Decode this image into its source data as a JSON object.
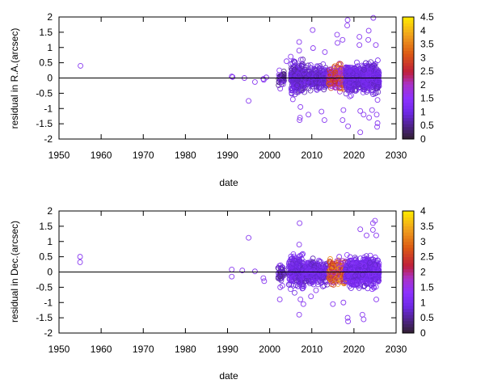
{
  "chart_data": [
    {
      "type": "scatter",
      "xlabel": "date",
      "ylabel": "residual in R.A.(arcsec)",
      "xlim": [
        1950,
        2030
      ],
      "ylim": [
        -2,
        2
      ],
      "xticks": [
        "1950",
        "1960",
        "1970",
        "1980",
        "1990",
        "2000",
        "2010",
        "2020",
        "2030"
      ],
      "yticks": [
        "-2",
        "-1.5",
        "-1",
        "-0.5",
        "0",
        "0.5",
        "1",
        "1.5",
        "2"
      ],
      "grid": false,
      "marker": "open circle",
      "reference_line_y": 0,
      "colorbar": {
        "range": [
          0,
          4.5
        ],
        "ticks": [
          "0",
          "0.5",
          "1",
          "1.5",
          "2",
          "2.5",
          "3",
          "3.5",
          "4",
          "4.5"
        ]
      },
      "point_color": "#8a3cf0",
      "points": [
        [
          1955.1,
          0.4
        ],
        [
          1991,
          0.05
        ],
        [
          1991.2,
          0.03
        ],
        [
          1994,
          0
        ],
        [
          1995,
          -0.75
        ],
        [
          1996.5,
          -0.13
        ],
        [
          1998.5,
          -0.03
        ],
        [
          1998.6,
          -0.06
        ],
        [
          1999.2,
          0.02
        ],
        [
          2002.3,
          0.25
        ],
        [
          2002.5,
          -0.35
        ],
        [
          2002.2,
          0.1
        ],
        [
          2002.6,
          -0.1
        ],
        [
          2003.2,
          -0.2
        ],
        [
          2004,
          0.55
        ],
        [
          2005,
          0.7
        ],
        [
          2005.5,
          -0.7
        ],
        [
          2007,
          1.18
        ],
        [
          2007,
          0.9
        ],
        [
          2007.2,
          -1.3
        ],
        [
          2007.1,
          -1.38
        ],
        [
          2007.3,
          -0.95
        ],
        [
          2007.4,
          0.6
        ],
        [
          2009.2,
          -1.2
        ],
        [
          2010.2,
          1.57
        ],
        [
          2010.3,
          0.98
        ],
        [
          2012.3,
          -1.1
        ],
        [
          2013,
          -1.38
        ],
        [
          2013.1,
          0.85
        ],
        [
          2016,
          1.42
        ],
        [
          2016.1,
          1.15
        ],
        [
          2017.3,
          1.25
        ],
        [
          2017.5,
          -1.05
        ],
        [
          2017.3,
          -1.38
        ],
        [
          2018.5,
          1.9
        ],
        [
          2018.4,
          1.72
        ],
        [
          2018.6,
          -1.58
        ],
        [
          2021.3,
          1.35
        ],
        [
          2021.3,
          1.08
        ],
        [
          2021.5,
          -1.08
        ],
        [
          2021.5,
          -1.78
        ],
        [
          2022.3,
          -1.2
        ],
        [
          2023.5,
          1.55
        ],
        [
          2023.4,
          1.25
        ],
        [
          2023.6,
          -1.3
        ],
        [
          2024.3,
          -1.05
        ],
        [
          2024.6,
          1.97
        ],
        [
          2025.2,
          1.08
        ],
        [
          2025.4,
          -1.2
        ],
        [
          2025.6,
          -1.48
        ],
        [
          2025.5,
          -1.6
        ],
        [
          2025.6,
          -0.72
        ]
      ],
      "dense_regions": [
        {
          "x": [
            2002,
            2003.5
          ],
          "spread": 0.15,
          "count": 40,
          "color_value": 0.6
        },
        {
          "x": [
            2005,
            2008
          ],
          "spread": 0.35,
          "count": 200,
          "color_value": 0.9
        },
        {
          "x": [
            2008,
            2014
          ],
          "spread": 0.25,
          "count": 300,
          "color_value": 0.9
        },
        {
          "x": [
            2014,
            2018
          ],
          "spread": 0.25,
          "count": 250,
          "color_value": 2.5
        },
        {
          "x": [
            2018,
            2026
          ],
          "spread": 0.3,
          "count": 600,
          "color_value": 1.0
        }
      ]
    },
    {
      "type": "scatter",
      "xlabel": "date",
      "ylabel": "residual in Dec.(arcsec)",
      "xlim": [
        1950,
        2030
      ],
      "ylim": [
        -2,
        2
      ],
      "xticks": [
        "1950",
        "1960",
        "1970",
        "1980",
        "1990",
        "2000",
        "2010",
        "2020",
        "2030"
      ],
      "yticks": [
        "-2",
        "-1.5",
        "-1",
        "-0.5",
        "0",
        "0.5",
        "1",
        "1.5",
        "2"
      ],
      "grid": false,
      "marker": "open circle",
      "reference_line_y": 0,
      "colorbar": {
        "range": [
          0,
          4
        ],
        "ticks": [
          "0",
          "0.5",
          "1",
          "1.5",
          "2",
          "2.5",
          "3",
          "3.5",
          "4"
        ]
      },
      "point_color": "#8a3cf0",
      "points": [
        [
          1955,
          0.5
        ],
        [
          1955,
          0.32
        ],
        [
          1991,
          0.08
        ],
        [
          1991,
          -0.15
        ],
        [
          1993.5,
          0.05
        ],
        [
          1995,
          1.12
        ],
        [
          1996.5,
          0.02
        ],
        [
          1998.5,
          -0.2
        ],
        [
          1998.7,
          -0.3
        ],
        [
          2002.3,
          0.2
        ],
        [
          2002.5,
          -0.5
        ],
        [
          2002.4,
          -0.9
        ],
        [
          2003,
          -0.45
        ],
        [
          2007.1,
          1.6
        ],
        [
          2007,
          0.9
        ],
        [
          2007,
          -1.4
        ],
        [
          2007.3,
          -0.9
        ],
        [
          2008,
          -1.05
        ],
        [
          2009.8,
          -0.8
        ],
        [
          2011,
          -0.6
        ],
        [
          2015,
          -1.05
        ],
        [
          2016.5,
          0.5
        ],
        [
          2017.5,
          -1.0
        ],
        [
          2018.5,
          -1.5
        ],
        [
          2018.6,
          -1.62
        ],
        [
          2021.5,
          1.4
        ],
        [
          2022,
          -1.4
        ],
        [
          2022.3,
          -1.55
        ],
        [
          2023,
          1.2
        ],
        [
          2024.5,
          1.6
        ],
        [
          2025,
          1.68
        ],
        [
          2024.5,
          1.38
        ],
        [
          2025.3,
          1.2
        ],
        [
          2025.3,
          -0.9
        ]
      ],
      "dense_regions": [
        {
          "x": [
            2002,
            2003.5
          ],
          "spread": 0.2,
          "count": 40,
          "color_value": 0.6
        },
        {
          "x": [
            2004.5,
            2008
          ],
          "spread": 0.35,
          "count": 200,
          "color_value": 0.9
        },
        {
          "x": [
            2008,
            2014
          ],
          "spread": 0.25,
          "count": 300,
          "color_value": 0.9
        },
        {
          "x": [
            2014,
            2018
          ],
          "spread": 0.25,
          "count": 250,
          "color_value": 2.5
        },
        {
          "x": [
            2018,
            2026
          ],
          "spread": 0.3,
          "count": 600,
          "color_value": 1.0
        }
      ]
    }
  ]
}
